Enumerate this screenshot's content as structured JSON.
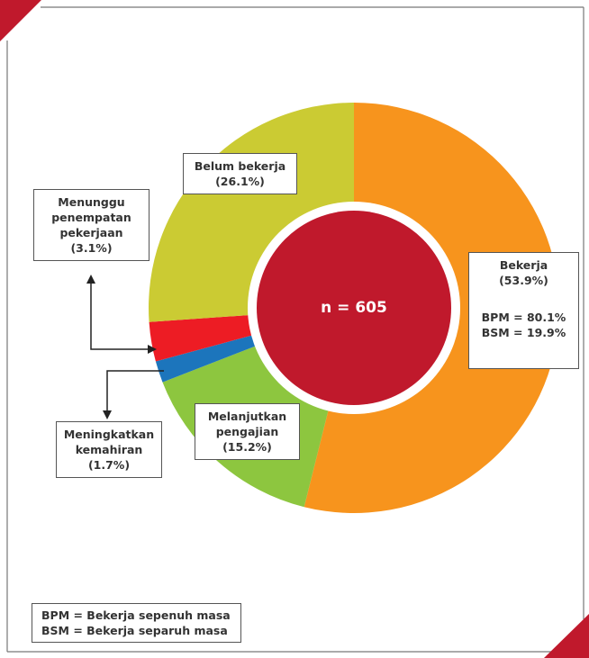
{
  "chart_data": {
    "type": "pie",
    "categories": [
      "Bekerja",
      "Melanjutkan pengajian",
      "Meningkatkan kemahiran",
      "Menunggu penempatan pekerjaan",
      "Belum bekerja"
    ],
    "values": [
      53.9,
      15.2,
      1.7,
      3.1,
      26.1
    ],
    "value_labels": [
      "(53.9%)",
      "(15.2%)",
      "(1.7%)",
      "(3.1%)",
      "(26.1%)"
    ],
    "colors": [
      "#f7941d",
      "#8dc63f",
      "#1c75bc",
      "#ed1c24",
      "#cbcb33"
    ],
    "center_label": "n = 605",
    "breakdown": [
      "BPM = 80.1%",
      "BSM = 19.9%"
    ],
    "notes": [
      "BPM = Bekerja sepenuh masa",
      "BSM = Bekerja separuh masa"
    ]
  }
}
